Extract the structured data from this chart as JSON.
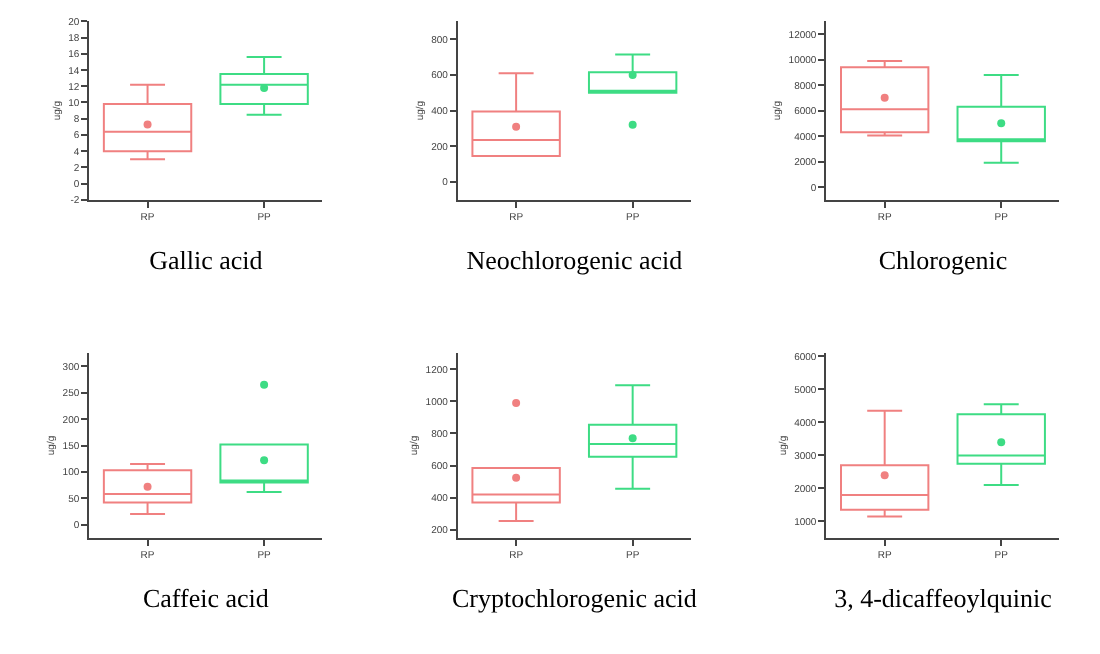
{
  "chart_data": [
    {
      "type": "box",
      "xlabel": "Gallic acid",
      "ylabel": "ug/g",
      "categories": [
        "RP",
        "PP"
      ],
      "ylim": [
        -2,
        20
      ],
      "yticks": [
        -2,
        0,
        2,
        4,
        6,
        8,
        10,
        12,
        14,
        16,
        18,
        20
      ],
      "series": [
        {
          "color": "#f08080",
          "boxes": [
            {
              "low": 3,
              "q1": 4,
              "median": 6.4,
              "q3": 9.8,
              "high": 12.2,
              "mean": 7.3
            },
            null
          ]
        },
        {
          "color": "#3ddc84",
          "boxes": [
            null,
            {
              "low": 8.5,
              "q1": 9.8,
              "median": 12.2,
              "q3": 13.5,
              "high": 15.6,
              "mean": 11.8
            }
          ]
        }
      ]
    },
    {
      "type": "box",
      "xlabel": "Neochlorogenic acid",
      "ylabel": "ug/g",
      "categories": [
        "RP",
        "PP"
      ],
      "ylim": [
        -100,
        900
      ],
      "yticks": [
        0,
        200,
        400,
        600,
        800
      ],
      "series": [
        {
          "color": "#f08080",
          "boxes": [
            {
              "low": 145,
              "q1": 145,
              "median": 235,
              "q3": 395,
              "high": 610,
              "mean": 310
            },
            null
          ]
        },
        {
          "color": "#3ddc84",
          "boxes": [
            null,
            {
              "low": 500,
              "q1": 500,
              "median": 510,
              "q3": 615,
              "high": 715,
              "mean": 600,
              "outliers": [
                320
              ]
            }
          ]
        }
      ]
    },
    {
      "type": "box",
      "xlabel": "Chlorogenic",
      "ylabel": "ug/g",
      "categories": [
        "RP",
        "PP"
      ],
      "ylim": [
        -1000,
        13000
      ],
      "yticks": [
        0,
        2000,
        4000,
        6000,
        8000,
        10000,
        12000
      ],
      "series": [
        {
          "color": "#f08080",
          "boxes": [
            {
              "low": 4050,
              "q1": 4300,
              "median": 6100,
              "q3": 9400,
              "high": 9900,
              "mean": 7000
            },
            null
          ]
        },
        {
          "color": "#3ddc84",
          "boxes": [
            null,
            {
              "low": 1900,
              "q1": 3600,
              "median": 3700,
              "q3": 6300,
              "high": 8800,
              "mean": 5000
            }
          ]
        }
      ]
    },
    {
      "type": "box",
      "xlabel": "Caffeic acid",
      "ylabel": "ug/g",
      "categories": [
        "RP",
        "PP"
      ],
      "ylim": [
        -25,
        325
      ],
      "yticks": [
        0,
        50,
        100,
        150,
        200,
        250,
        300
      ],
      "series": [
        {
          "color": "#f08080",
          "boxes": [
            {
              "low": 20,
              "q1": 42,
              "median": 58,
              "q3": 103,
              "high": 115,
              "mean": 72
            },
            null
          ]
        },
        {
          "color": "#3ddc84",
          "boxes": [
            null,
            {
              "low": 62,
              "q1": 80,
              "median": 80,
              "q3": 152,
              "high": 152,
              "mean": 122,
              "outliers": [
                265
              ]
            }
          ]
        }
      ]
    },
    {
      "type": "box",
      "xlabel": "Cryptochlorogenic acid",
      "ylabel": "ug/g",
      "categories": [
        "RP",
        "PP"
      ],
      "ylim": [
        150,
        1300
      ],
      "yticks": [
        200,
        400,
        600,
        800,
        1000,
        1200
      ],
      "series": [
        {
          "color": "#f08080",
          "boxes": [
            {
              "low": 255,
              "q1": 370,
              "median": 420,
              "q3": 585,
              "high": 585,
              "mean": 525,
              "outliers": [
                990
              ]
            },
            null
          ]
        },
        {
          "color": "#3ddc84",
          "boxes": [
            null,
            {
              "low": 455,
              "q1": 655,
              "median": 735,
              "q3": 855,
              "high": 1100,
              "mean": 770
            }
          ]
        }
      ]
    },
    {
      "type": "box",
      "xlabel": "3, 4-dicaffeoylquinic",
      "ylabel": "ug/g",
      "categories": [
        "RP",
        "PP"
      ],
      "ylim": [
        500,
        6100
      ],
      "yticks": [
        1000,
        2000,
        3000,
        4000,
        5000,
        6000
      ],
      "series": [
        {
          "color": "#f08080",
          "boxes": [
            {
              "low": 1150,
              "q1": 1350,
              "median": 1800,
              "q3": 2700,
              "high": 4350,
              "mean": 2400
            },
            null
          ]
        },
        {
          "color": "#3ddc84",
          "boxes": [
            null,
            {
              "low": 2100,
              "q1": 2750,
              "median": 3000,
              "q3": 4250,
              "high": 4550,
              "mean": 3400
            }
          ]
        }
      ]
    }
  ]
}
